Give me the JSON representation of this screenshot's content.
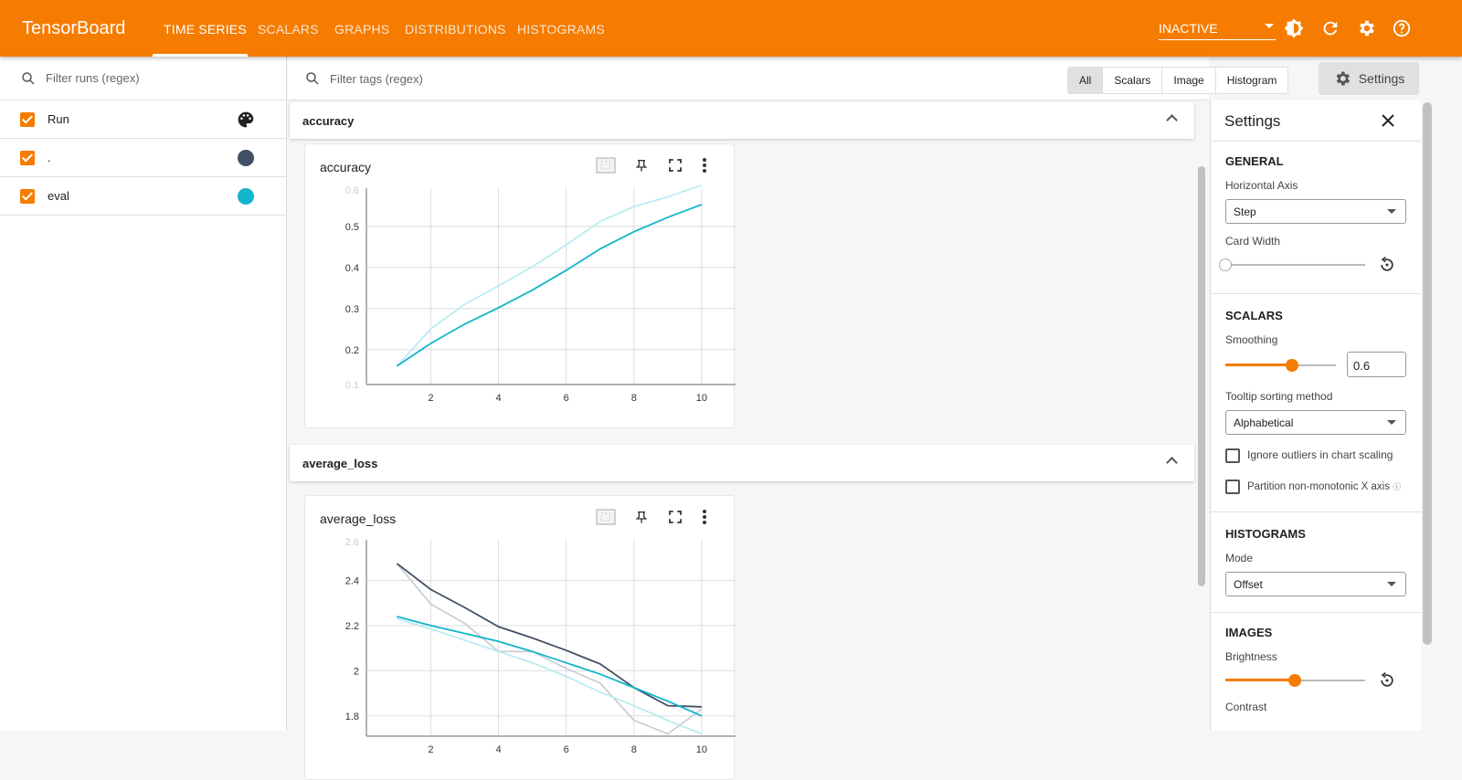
{
  "app": {
    "title": "TensorBoard"
  },
  "tabs": [
    {
      "label": "TIME SERIES",
      "active": true
    },
    {
      "label": "SCALARS"
    },
    {
      "label": "GRAPHS"
    },
    {
      "label": "DISTRIBUTIONS"
    },
    {
      "label": "HISTOGRAMS"
    }
  ],
  "header": {
    "status_select": "INACTIVE",
    "icons": [
      "brightness-icon",
      "refresh-icon",
      "settings-icon",
      "help-icon"
    ]
  },
  "runs": {
    "filter_placeholder": "Filter runs (regex)",
    "header_label": "Run",
    "items": [
      {
        "label": ".",
        "checked": true,
        "color": "#425066"
      },
      {
        "label": "eval",
        "checked": true,
        "color": "#12b5cb"
      }
    ]
  },
  "tags": {
    "filter_placeholder": "Filter tags (regex)",
    "types": [
      "All",
      "Scalars",
      "Image",
      "Histogram"
    ],
    "selected_type": "All",
    "settings_label": "Settings"
  },
  "groups": [
    {
      "name": "accuracy"
    },
    {
      "name": "average_loss"
    }
  ],
  "accent": "#f57c00",
  "chart_data": [
    {
      "type": "line",
      "title": "accuracy",
      "x": [
        1,
        2,
        3,
        4,
        5,
        6,
        7,
        8,
        9,
        10
      ],
      "xticks": [
        "2",
        "4",
        "6",
        "8",
        "10"
      ],
      "yticks": [
        "0.1",
        "0.2",
        "0.3",
        "0.4",
        "0.5",
        "0.6"
      ],
      "ylim": [
        0.115,
        0.593
      ],
      "xlim": [
        0.1,
        11
      ],
      "grid": true,
      "series": [
        {
          "run": "eval",
          "color": "#12b5cb",
          "raw_color": "#b2ebf2",
          "smoothed": [
            0.16,
            0.215,
            0.262,
            0.302,
            0.345,
            0.393,
            0.445,
            0.487,
            0.522,
            0.553
          ],
          "raw": [
            0.16,
            0.25,
            0.31,
            0.355,
            0.402,
            0.455,
            0.512,
            0.548,
            0.572,
            0.6
          ]
        }
      ]
    },
    {
      "type": "line",
      "title": "average_loss",
      "x": [
        1,
        2,
        3,
        4,
        5,
        6,
        7,
        8,
        9,
        10
      ],
      "xticks": [
        "2",
        "4",
        "6",
        "8",
        "10"
      ],
      "yticks": [
        "1.8",
        "2",
        "2.2",
        "2.4",
        "2.6"
      ],
      "ylim": [
        1.71,
        2.58
      ],
      "xlim": [
        0.1,
        11
      ],
      "grid": true,
      "series": [
        {
          "run": ".",
          "color": "#425066",
          "raw_color": "#c5cad3",
          "smoothed": [
            2.475,
            2.36,
            2.28,
            2.195,
            2.145,
            2.09,
            2.03,
            1.925,
            1.845,
            1.84
          ],
          "raw": [
            2.475,
            2.295,
            2.21,
            2.085,
            2.085,
            2.01,
            1.945,
            1.78,
            1.72,
            1.83
          ]
        },
        {
          "run": "eval",
          "color": "#12b5cb",
          "raw_color": "#b2ebf2",
          "smoothed": [
            2.24,
            2.2,
            2.165,
            2.13,
            2.085,
            2.035,
            1.985,
            1.925,
            1.865,
            1.8
          ],
          "raw": [
            2.23,
            2.185,
            2.135,
            2.085,
            2.035,
            1.975,
            1.905,
            1.845,
            1.78,
            1.72
          ]
        }
      ]
    }
  ],
  "settings": {
    "title": "Settings",
    "general": {
      "heading": "GENERAL",
      "horizontal_axis_label": "Horizontal Axis",
      "horizontal_axis": "Step",
      "card_width_label": "Card Width",
      "card_width": 0
    },
    "scalars": {
      "heading": "SCALARS",
      "smoothing_label": "Smoothing",
      "smoothing": "0.6",
      "tooltip_label": "Tooltip sorting method",
      "tooltip": "Alphabetical",
      "ignore_outliers": "Ignore outliers in chart scaling",
      "partition": "Partition non-monotonic X axis"
    },
    "histograms": {
      "heading": "HISTOGRAMS",
      "mode_label": "Mode",
      "mode": "Offset"
    },
    "images": {
      "heading": "IMAGES",
      "brightness_label": "Brightness",
      "brightness": 0.5,
      "contrast_label": "Contrast"
    }
  }
}
